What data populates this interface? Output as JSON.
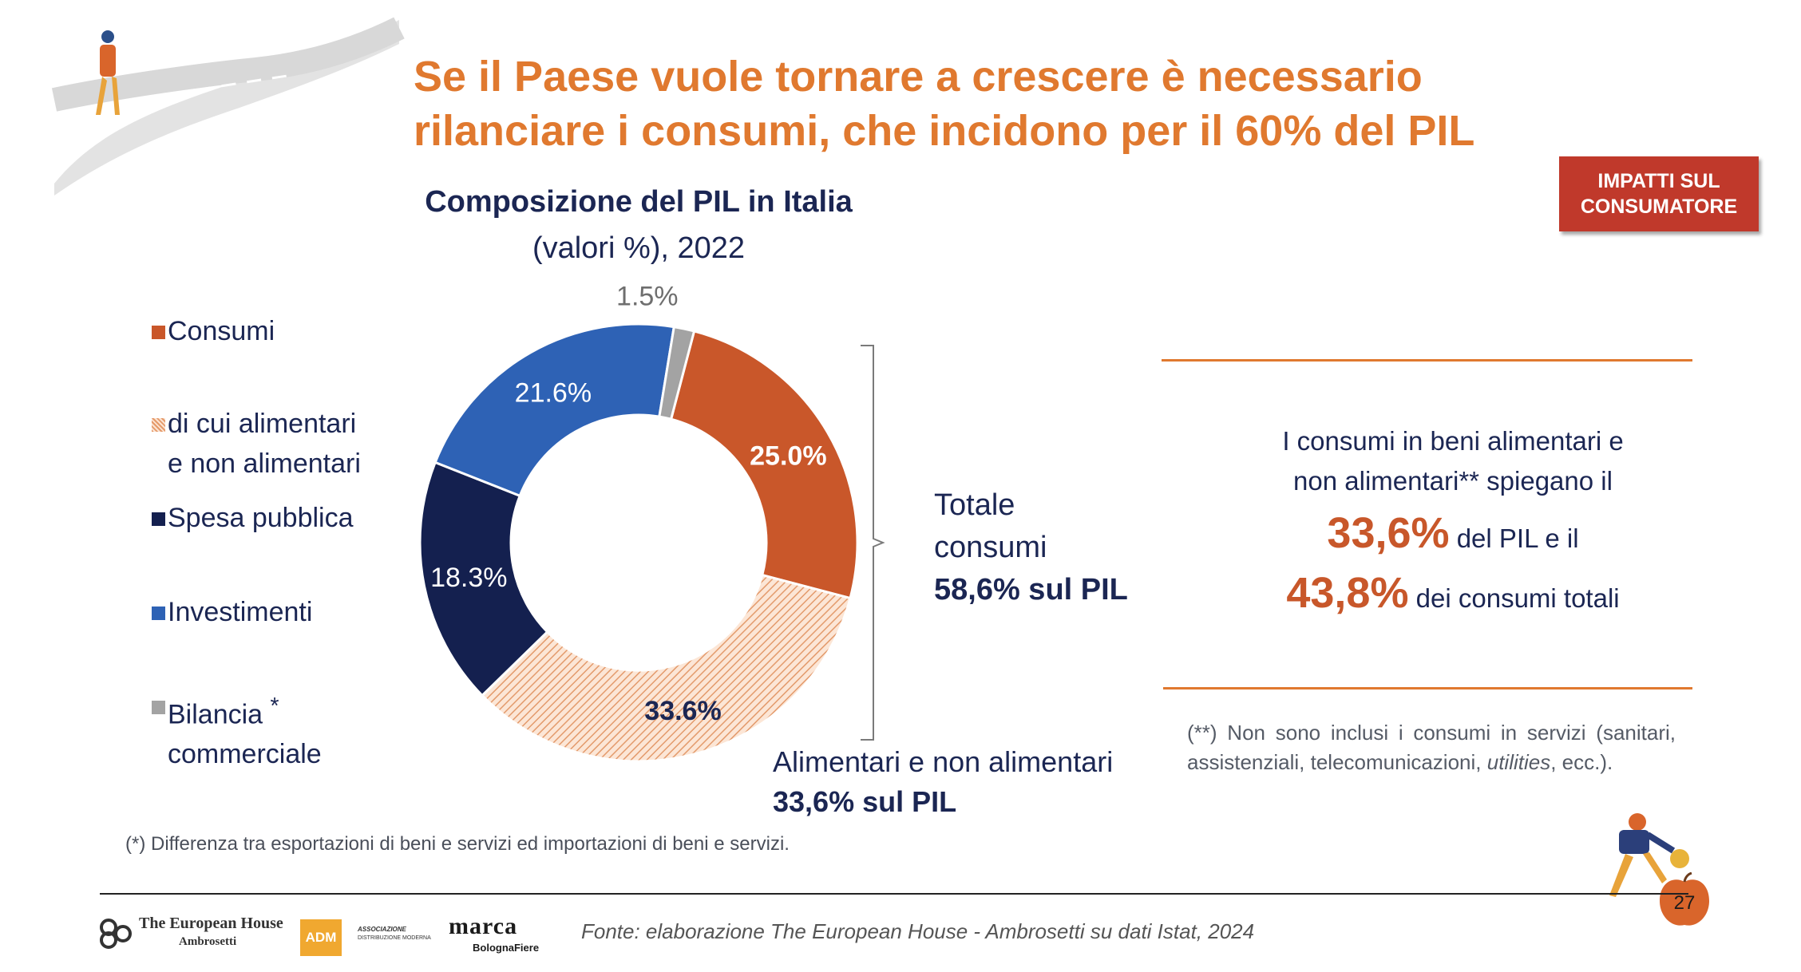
{
  "title": "Se il Paese vuole tornare a crescere è necessario rilanciare i consumi, che incidono per il 60% del PIL",
  "badge": "IMPATTI SUL CONSUMATORE",
  "colors": {
    "consumi": "#c9572a",
    "alimentari": "#f2b98f",
    "spesa": "#14204f",
    "investimenti": "#2e62b5",
    "bilancia": "#a3a3a3",
    "accent": "#e0792f"
  },
  "chart_data": {
    "type": "pie",
    "title": "Composizione del PIL in Italia",
    "subtitle": "(valori %), 2022",
    "slices": [
      {
        "name": "Consumi",
        "value": 25.0,
        "label": "25.0%",
        "color": "#c9572a"
      },
      {
        "name": "di cui alimentari e non alimentari",
        "value": 33.6,
        "label": "33.6%",
        "color": "#f2b98f"
      },
      {
        "name": "Spesa pubblica",
        "value": 18.3,
        "label": "18.3%",
        "color": "#14204f"
      },
      {
        "name": "Investimenti",
        "value": 21.6,
        "label": "21.6%",
        "color": "#2e62b5"
      },
      {
        "name": "Bilancia commerciale",
        "value": 1.5,
        "label": "1.5%",
        "color": "#a3a3a3"
      }
    ],
    "legend": [
      {
        "line1": "Consumi",
        "line2": "",
        "marker": "*"
      },
      {
        "line1": "di cui alimentari",
        "line2": "e non alimentari"
      },
      {
        "line1": "Spesa pubblica",
        "line2": ""
      },
      {
        "line1": "Investimenti",
        "line2": ""
      },
      {
        "line1": "Bilancia",
        "line2": "commerciale",
        "marker": "*"
      }
    ]
  },
  "totale": {
    "line1": "Totale",
    "line2": "consumi",
    "line3": "58,6% sul PIL"
  },
  "alimentari_label": {
    "line1": "Alimentari e non alimentari",
    "line2": "33,6% sul PIL"
  },
  "info": {
    "line1": "I consumi in beni alimentari e",
    "line2": "non alimentari** spiegano il",
    "num1": "33,6%",
    "text1": "del PIL e il",
    "num2": "43,8%",
    "text2": "dei consumi totali"
  },
  "note": {
    "prefix": "(**) Non sono inclusi i consumi in servizi (sanitari, assistenziali, telecomunicazioni,",
    "italic": "utilities",
    "suffix": ", ecc.)."
  },
  "footnote": "(*) Differenza tra esportazioni di beni e servizi ed importazioni di beni e servizi.",
  "source": "Fonte: elaborazione The European House - Ambrosetti su dati Istat, 2024",
  "page_number": "27",
  "logos": {
    "teha_line1": "The European House",
    "teha_line2": "Ambrosetti",
    "adm": "ADM",
    "adm_sub1": "ASSOCIAZIONE",
    "adm_sub2": "DISTRIBUZIONE MODERNA",
    "marca": "marca",
    "bolognafiere": "BolognaFiere"
  }
}
